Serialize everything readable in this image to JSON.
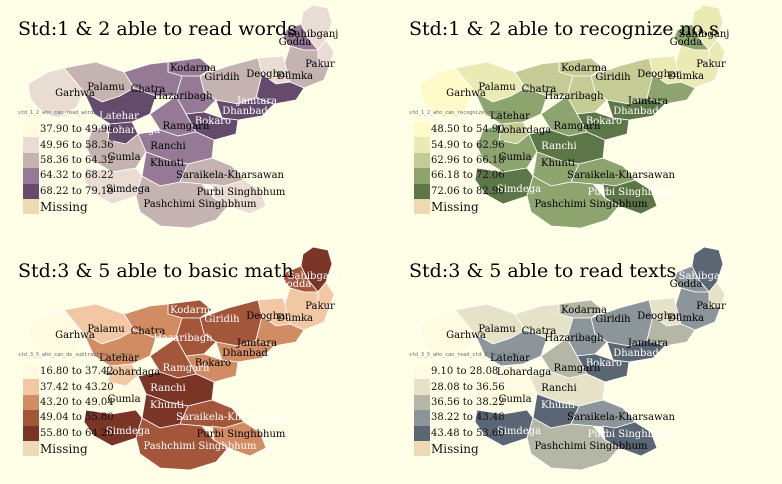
{
  "panels": [
    {
      "title": "Std:1 & 2 able to read words",
      "legend_title": "std_1_2_who_can_read_words",
      "colors": [
        "#FFFBE0",
        "#E9DCD2",
        "#C5B3B1",
        "#967A95",
        "#644B6B"
      ],
      "legend": [
        "37.90 to 49.96",
        "49.96 to 58.36",
        "58.36 to 64.32",
        "64.32 to 68.22",
        "68.22 to 79.10"
      ],
      "missing_color": "#EDD9B3",
      "missing_label": "Missing",
      "district_classes": {
        "sahibganj": 1,
        "godda": 3,
        "pakur": 1,
        "dumka": 2,
        "deoghar": 1,
        "jamtara": 4,
        "giridih": 2,
        "kodarma": 3,
        "chatra": 3,
        "hazaribagh": 3,
        "dhanbad": 4,
        "bokaro": 4,
        "palamu": 2,
        "garhwa": 1,
        "latehar": 4,
        "lohardaga": 4,
        "ramgarh": 3,
        "ranchi": 3,
        "gumla": 2,
        "khunti": 3,
        "simdega": 1,
        "saraikela": 2,
        "purbi": 1,
        "pashchimi": 2
      }
    },
    {
      "title": "Std:1 & 2 able to recognize no.s",
      "legend_title": "std_1_2_who_can_recognize_numbers",
      "colors": [
        "#FFFBC8",
        "#EAEAB4",
        "#C4CB94",
        "#8EA46E",
        "#5D7647"
      ],
      "legend": [
        "48.50 to 54.90",
        "54.90 to 62.96",
        "62.96 to 66.18",
        "66.18 to 72.06",
        "72.06 to 82.90"
      ],
      "missing_color": "#EDD9B3",
      "missing_label": "Missing",
      "district_classes": {
        "sahibganj": 1,
        "godda": 3,
        "pakur": 1,
        "dumka": 1,
        "deoghar": 1,
        "jamtara": 3,
        "giridih": 2,
        "kodarma": 2,
        "chatra": 2,
        "hazaribagh": 2,
        "dhanbad": 4,
        "bokaro": 4,
        "palamu": 1,
        "garhwa": 0,
        "latehar": 3,
        "lohardaga": 2,
        "ramgarh": 3,
        "ranchi": 4,
        "gumla": 3,
        "khunti": 3,
        "simdega": 4,
        "saraikela": 3,
        "purbi": 4,
        "pashchimi": 3
      }
    },
    {
      "title": "Std:3 & 5 able to basic math",
      "legend_title": "std_3_5_who_can_do_subtraction_or_more",
      "colors": [
        "#FFFBE0",
        "#F2C8A4",
        "#D28C63",
        "#A4563A",
        "#7A3526"
      ],
      "legend": [
        "16.80 to 37.42",
        "37.42 to 43.20",
        "43.20 to 49.04",
        "49.04 to 55.80",
        "55.80 to 64.20"
      ],
      "missing_color": "#EDD9B3",
      "missing_label": "Missing",
      "district_classes": {
        "sahibganj": 4,
        "godda": 3,
        "pakur": 1,
        "dumka": 1,
        "deoghar": 1,
        "jamtara": 2,
        "giridih": 3,
        "kodarma": 3,
        "chatra": 2,
        "hazaribagh": 3,
        "dhanbad": 2,
        "bokaro": 2,
        "palamu": 1,
        "garhwa": 0,
        "latehar": 2,
        "lohardaga": 1,
        "ramgarh": 3,
        "ranchi": 4,
        "gumla": 0,
        "khunti": 4,
        "simdega": 4,
        "saraikela": 3,
        "purbi": 2,
        "pashchimi": 3
      }
    },
    {
      "title": "Std:3 & 5 able to read texts",
      "legend_title": "std_3_5_who_can_read_std_2_level_text",
      "colors": [
        "#FFFBE0",
        "#E6E2C8",
        "#B5B7A6",
        "#8C959A",
        "#5B6674"
      ],
      "legend": [
        "9.10 to 28.08",
        "28.08 to 36.56",
        "36.56 to 38.22",
        "38.22 to 43.48",
        "43.48 to 53.60"
      ],
      "missing_color": "#EDD9B3",
      "missing_label": "Missing",
      "district_classes": {
        "sahibganj": 4,
        "godda": 3,
        "pakur": 1,
        "dumka": 3,
        "deoghar": 1,
        "jamtara": 2,
        "giridih": 3,
        "kodarma": 2,
        "chatra": 1,
        "hazaribagh": 3,
        "dhanbad": 4,
        "bokaro": 4,
        "palamu": 1,
        "garhwa": 0,
        "latehar": 3,
        "lohardaga": 0,
        "ramgarh": 2,
        "ranchi": 1,
        "gumla": 0,
        "khunti": 4,
        "simdega": 4,
        "saraikela": 3,
        "purbi": 4,
        "pashchimi": 2
      }
    }
  ],
  "district_names": {
    "sahibganj": "Sahibganj",
    "godda": "Godda",
    "pakur": "Pakur",
    "dumka": "Dumka",
    "deoghar": "Deoghar",
    "jamtara": "Jamtara",
    "giridih": "Giridih",
    "kodarma": "Kodarma",
    "chatra": "Chatra",
    "hazaribagh": "Hazaribagh",
    "dhanbad": "Dhanbad",
    "bokaro": "Bokaro",
    "palamu": "Palamu",
    "garhwa": "Garhwa",
    "latehar": "Latehar",
    "lohardaga": "Lohardaga",
    "ramgarh": "Ramgarh",
    "ranchi": "Ranchi",
    "gumla": "Gumla",
    "khunti": "Khunti",
    "simdega": "Simdega",
    "saraikela": "Saraikela-Kharsawan",
    "purbi": "Purbi Singhbhum",
    "pashchimi": "Pashchimi Singhbhum"
  }
}
